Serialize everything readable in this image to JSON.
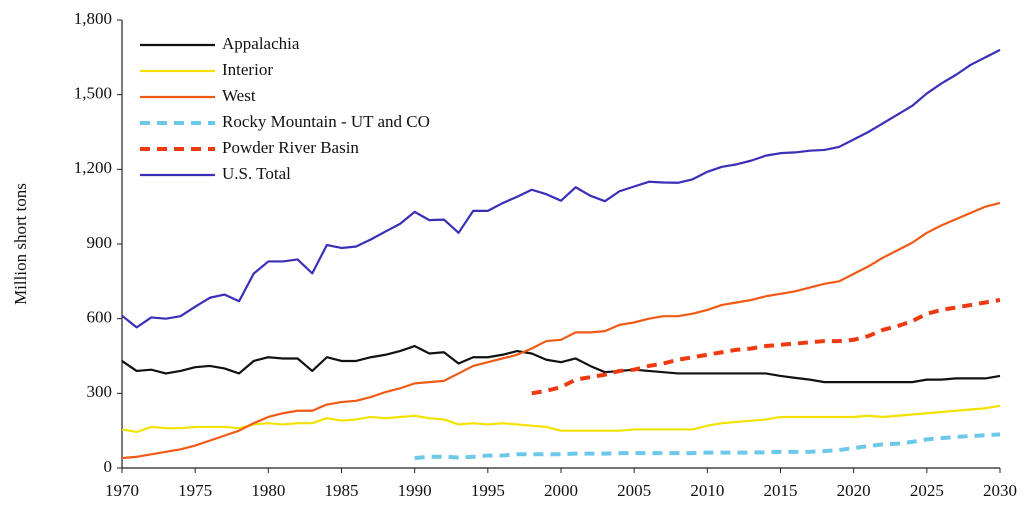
{
  "chart_data": {
    "type": "line",
    "y_label": "Million short tons",
    "x": [
      1970,
      1971,
      1972,
      1973,
      1974,
      1975,
      1976,
      1977,
      1978,
      1979,
      1980,
      1981,
      1982,
      1983,
      1984,
      1985,
      1986,
      1987,
      1988,
      1989,
      1990,
      1991,
      1992,
      1993,
      1994,
      1995,
      1996,
      1997,
      1998,
      1999,
      2000,
      2001,
      2002,
      2003,
      2004,
      2005,
      2006,
      2007,
      2008,
      2009,
      2010,
      2011,
      2012,
      2013,
      2014,
      2015,
      2016,
      2017,
      2018,
      2019,
      2020,
      2021,
      2022,
      2023,
      2024,
      2025,
      2026,
      2027,
      2028,
      2029,
      2030
    ],
    "xlim": [
      1970,
      2030
    ],
    "xticks": [
      1970,
      1975,
      1980,
      1985,
      1990,
      1995,
      2000,
      2005,
      2010,
      2015,
      2020,
      2025,
      2030
    ],
    "ylim": [
      0,
      1800
    ],
    "yticks": [
      0,
      300,
      600,
      900,
      {
        "value": 1200,
        "label": "1,200"
      },
      {
        "value": 1500,
        "label": "1,500"
      },
      {
        "value": 1800,
        "label": "1,800"
      }
    ],
    "legend": "upper-left",
    "series": [
      {
        "name": "Appalachia",
        "color": "#111111",
        "style": "solid",
        "values": [
          430,
          390,
          395,
          380,
          390,
          405,
          410,
          400,
          380,
          430,
          445,
          440,
          440,
          390,
          445,
          430,
          430,
          445,
          455,
          470,
          490,
          460,
          465,
          420,
          445,
          445,
          455,
          470,
          460,
          435,
          425,
          440,
          410,
          385,
          390,
          395,
          390,
          385,
          380,
          380,
          380,
          380,
          380,
          380,
          380,
          370,
          362,
          355,
          345,
          345,
          345,
          345,
          345,
          345,
          345,
          355,
          355,
          360,
          360,
          360,
          370
        ]
      },
      {
        "name": "Interior",
        "color": "#f2e200",
        "style": "solid",
        "values": [
          155,
          145,
          165,
          160,
          160,
          165,
          165,
          165,
          160,
          175,
          180,
          175,
          180,
          180,
          200,
          190,
          195,
          205,
          200,
          205,
          210,
          200,
          195,
          175,
          180,
          175,
          180,
          175,
          170,
          165,
          150,
          150,
          150,
          150,
          150,
          155,
          155,
          155,
          155,
          155,
          170,
          180,
          185,
          190,
          195,
          205,
          205,
          205,
          205,
          205,
          205,
          210,
          205,
          210,
          215,
          220,
          225,
          230,
          235,
          240,
          250
        ]
      },
      {
        "name": "West",
        "color": "#f05a14",
        "style": "solid",
        "values": [
          40,
          45,
          55,
          65,
          75,
          90,
          110,
          130,
          150,
          180,
          205,
          220,
          230,
          230,
          255,
          265,
          270,
          285,
          305,
          320,
          340,
          345,
          350,
          380,
          410,
          425,
          440,
          455,
          480,
          510,
          515,
          545,
          545,
          550,
          575,
          585,
          600,
          610,
          610,
          620,
          635,
          655,
          665,
          675,
          690,
          700,
          710,
          725,
          740,
          750,
          780,
          810,
          845,
          875,
          905,
          945,
          975,
          1000,
          1025,
          1050,
          1065
        ]
      },
      {
        "name": "Rocky Mountain - UT and CO",
        "color": "#6cc8e8",
        "style": "dashed",
        "values": [
          null,
          null,
          null,
          null,
          null,
          null,
          null,
          null,
          null,
          null,
          null,
          null,
          null,
          null,
          null,
          null,
          null,
          null,
          null,
          null,
          40,
          45,
          45,
          42,
          45,
          50,
          50,
          55,
          55,
          55,
          55,
          58,
          58,
          58,
          60,
          60,
          60,
          60,
          60,
          60,
          62,
          62,
          62,
          62,
          63,
          65,
          65,
          65,
          68,
          72,
          80,
          88,
          95,
          98,
          105,
          115,
          120,
          125,
          128,
          132,
          135
        ]
      },
      {
        "name": "Powder River Basin",
        "color": "#ee3a10",
        "style": "dashed",
        "values": [
          null,
          null,
          null,
          null,
          null,
          null,
          null,
          null,
          null,
          null,
          null,
          null,
          null,
          null,
          null,
          null,
          null,
          null,
          null,
          null,
          null,
          null,
          null,
          null,
          null,
          null,
          null,
          null,
          300,
          310,
          325,
          355,
          365,
          375,
          390,
          395,
          410,
          420,
          435,
          445,
          455,
          465,
          475,
          480,
          490,
          495,
          500,
          505,
          510,
          510,
          515,
          530,
          555,
          570,
          590,
          620,
          635,
          645,
          655,
          665,
          675
        ]
      },
      {
        "name": "U.S. Total",
        "color": "#3a2fb8",
        "style": "solid",
        "values": [
          612,
          565,
          605,
          600,
          610,
          648,
          684,
          697,
          670,
          781,
          830,
          830,
          838,
          782,
          896,
          884,
          890,
          918,
          950,
          981,
          1029,
          996,
          998,
          945,
          1033,
          1033,
          1064,
          1090,
          1118,
          1100,
          1074,
          1128,
          1094,
          1072,
          1112,
          1131,
          1150,
          1147,
          1146,
          1160,
          1190,
          1210,
          1220,
          1235,
          1255,
          1265,
          1268,
          1275,
          1278,
          1290,
          1320,
          1350,
          1385,
          1420,
          1455,
          1505,
          1545,
          1580,
          1620,
          1650,
          1680
        ]
      }
    ]
  }
}
